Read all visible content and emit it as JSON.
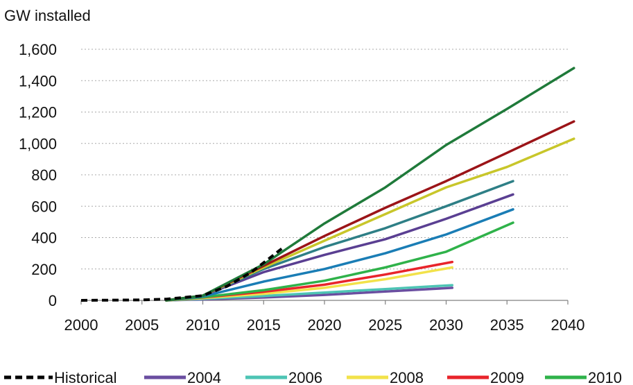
{
  "chart_data": {
    "type": "line",
    "title": "",
    "ylabel": "GW installed",
    "xlabel": "",
    "xlim": [
      2000,
      2040
    ],
    "ylim": [
      0,
      1600
    ],
    "xticks": [
      2000,
      2005,
      2010,
      2015,
      2020,
      2025,
      2030,
      2035,
      2040
    ],
    "xtick_labels": [
      "2000",
      "2005",
      "2010",
      "2015",
      "2020",
      "2025",
      "2030",
      "2035",
      "2040"
    ],
    "yticks": [
      0,
      200,
      400,
      600,
      800,
      1000,
      1200,
      1400,
      1600
    ],
    "ytick_labels": [
      "0",
      "200",
      "400",
      "600",
      "800",
      "1,000",
      "1,200",
      "1,400",
      "1,600"
    ],
    "grid": "horizontal dotted",
    "legend_position": "bottom",
    "legend": [
      {
        "name": "Historical",
        "color": "#000000",
        "dashed": true
      },
      {
        "name": "2004",
        "color": "#6a4ea0"
      },
      {
        "name": "2006",
        "color": "#4dc4b4"
      },
      {
        "name": "2008",
        "color": "#f2e24a"
      },
      {
        "name": "2009",
        "color": "#e8242b"
      },
      {
        "name": "2010",
        "color": "#2fb24a"
      }
    ],
    "series": [
      {
        "name": "2004",
        "color": "#6a4ea0",
        "x": [
          2007,
          2010,
          2015,
          2020,
          2025,
          2030.5
        ],
        "y": [
          0,
          6,
          18,
          35,
          56,
          80
        ]
      },
      {
        "name": "2006",
        "color": "#4dc4b4",
        "x": [
          2007,
          2010,
          2015,
          2020,
          2025,
          2030.5
        ],
        "y": [
          0,
          10,
          28,
          50,
          72,
          97
        ]
      },
      {
        "name": "2008",
        "color": "#f2e24a",
        "x": [
          2007,
          2010,
          2015,
          2020,
          2025,
          2030.5
        ],
        "y": [
          0,
          14,
          42,
          80,
          135,
          210
        ]
      },
      {
        "name": "2009",
        "color": "#e8242b",
        "x": [
          2007,
          2010,
          2015,
          2020,
          2025,
          2030.5
        ],
        "y": [
          0,
          18,
          55,
          100,
          165,
          245
        ]
      },
      {
        "color": "#2fb24a",
        "x": [
          2007,
          2010,
          2015,
          2020,
          2025,
          2030,
          2035.5
        ],
        "y": [
          0,
          20,
          65,
          125,
          210,
          310,
          495
        ]
      },
      {
        "color": "#1a7db5",
        "x": [
          2007,
          2010,
          2015,
          2020,
          2025,
          2030,
          2035.5
        ],
        "y": [
          0,
          25,
          120,
          200,
          300,
          420,
          580
        ]
      },
      {
        "color": "#5a3f92",
        "x": [
          2007,
          2010,
          2015,
          2020,
          2025,
          2030,
          2035.5
        ],
        "y": [
          0,
          30,
          180,
          290,
          390,
          520,
          675
        ]
      },
      {
        "color": "#2e7f86",
        "x": [
          2007,
          2010,
          2015,
          2020,
          2025,
          2030,
          2035.5
        ],
        "y": [
          0,
          30,
          200,
          340,
          460,
          600,
          760
        ]
      },
      {
        "color": "#c8c62a",
        "x": [
          2007,
          2010,
          2015,
          2020,
          2025,
          2030,
          2035,
          2040.5
        ],
        "y": [
          0,
          30,
          210,
          380,
          550,
          720,
          850,
          1030
        ]
      },
      {
        "color": "#9b1418",
        "x": [
          2007,
          2010,
          2015,
          2020,
          2025,
          2030,
          2035,
          2040.5
        ],
        "y": [
          0,
          30,
          220,
          410,
          590,
          760,
          940,
          1140
        ]
      },
      {
        "color": "#1f7a3a",
        "x": [
          2007,
          2010,
          2015,
          2020,
          2025,
          2030,
          2035,
          2040.5
        ],
        "y": [
          0,
          30,
          230,
          490,
          720,
          990,
          1220,
          1480
        ]
      },
      {
        "name": "Historical",
        "color": "#000000",
        "dashed": true,
        "x": [
          2000,
          2005,
          2007,
          2010,
          2012,
          2014,
          2016.5
        ],
        "y": [
          0,
          3,
          8,
          30,
          90,
          180,
          330
        ]
      }
    ]
  }
}
